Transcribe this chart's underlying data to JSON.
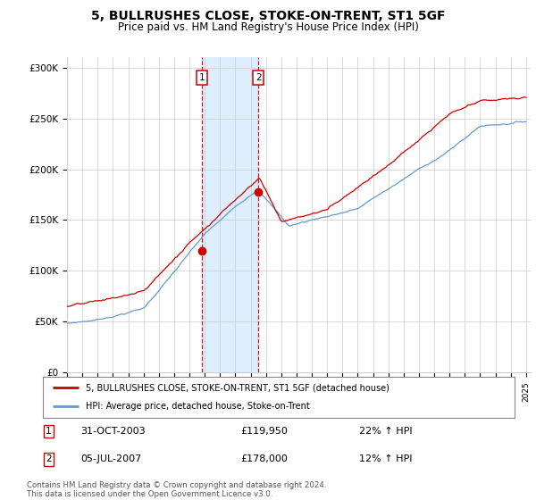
{
  "title": "5, BULLRUSHES CLOSE, STOKE-ON-TRENT, ST1 5GF",
  "subtitle": "Price paid vs. HM Land Registry's House Price Index (HPI)",
  "title_fontsize": 10,
  "subtitle_fontsize": 8.5,
  "y_min": 0,
  "y_max": 310000,
  "y_ticks": [
    0,
    50000,
    100000,
    150000,
    200000,
    250000,
    300000
  ],
  "y_tick_labels": [
    "£0",
    "£50K",
    "£100K",
    "£150K",
    "£200K",
    "£250K",
    "£300K"
  ],
  "sale1_year": 2003.83,
  "sale1_price": 119950,
  "sale2_year": 2007.5,
  "sale2_price": 178000,
  "sale_color": "#cc0000",
  "hpi_color": "#6699cc",
  "shaded_color": "#ddeeff",
  "annotation1_label": "1",
  "annotation1_date": "31-OCT-2003",
  "annotation1_price": "£119,950",
  "annotation1_hpi": "22% ↑ HPI",
  "annotation2_label": "2",
  "annotation2_date": "05-JUL-2007",
  "annotation2_price": "£178,000",
  "annotation2_hpi": "12% ↑ HPI",
  "legend_line1": "5, BULLRUSHES CLOSE, STOKE-ON-TRENT, ST1 5GF (detached house)",
  "legend_line2": "HPI: Average price, detached house, Stoke-on-Trent",
  "footer_line1": "Contains HM Land Registry data © Crown copyright and database right 2024.",
  "footer_line2": "This data is licensed under the Open Government Licence v3.0.",
  "background_color": "#ffffff",
  "grid_color": "#cccccc"
}
